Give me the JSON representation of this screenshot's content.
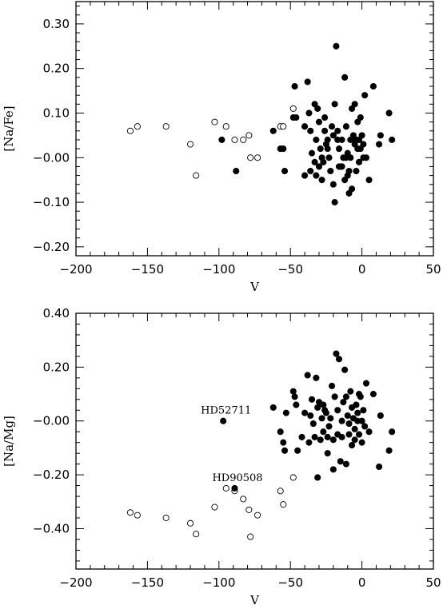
{
  "chart_data": [
    {
      "type": "scatter",
      "xlabel": "V",
      "ylabel": "[Na/Fe]",
      "xlim": [
        -200,
        50
      ],
      "ylim": [
        -0.22,
        0.35
      ],
      "xticks": [
        -200,
        -150,
        -100,
        -50,
        0,
        50
      ],
      "xtick_labels": [
        "−200",
        "−150",
        "−100",
        "−50",
        "0",
        "50"
      ],
      "yticks": [
        -0.2,
        -0.1,
        0.0,
        0.1,
        0.2,
        0.3
      ],
      "ytick_labels": [
        "−0.20",
        "−0.10",
        "−0.00",
        "0.10",
        "0.20",
        "0.30"
      ],
      "annotations": [],
      "series": [
        {
          "marker": "open-circle",
          "points": [
            [
              -162,
              0.06
            ],
            [
              -157,
              0.07
            ],
            [
              -137,
              0.07
            ],
            [
              -120,
              0.03
            ],
            [
              -116,
              -0.04
            ],
            [
              -103,
              0.08
            ],
            [
              -95,
              0.07
            ],
            [
              -89,
              0.04
            ],
            [
              -83,
              0.04
            ],
            [
              -79,
              0.05
            ],
            [
              -78,
              0.0
            ],
            [
              -73,
              0.0
            ],
            [
              -57,
              0.07
            ],
            [
              -55,
              0.07
            ],
            [
              -48,
              0.11
            ]
          ]
        },
        {
          "marker": "filled-circle",
          "points": [
            [
              -98,
              0.04
            ],
            [
              -88,
              -0.03
            ],
            [
              -62,
              0.06
            ],
            [
              -57,
              0.02
            ],
            [
              -55,
              0.02
            ],
            [
              -54,
              -0.03
            ],
            [
              -48,
              0.09
            ],
            [
              -47,
              0.16
            ],
            [
              -46,
              0.09
            ],
            [
              -40,
              0.07
            ],
            [
              -38,
              0.17
            ],
            [
              -37,
              0.1
            ],
            [
              -36,
              0.06
            ],
            [
              -35,
              0.01
            ],
            [
              -33,
              0.12
            ],
            [
              -32,
              0.04
            ],
            [
              -31,
              0.11
            ],
            [
              -30,
              0.08
            ],
            [
              -29,
              0.02
            ],
            [
              -28,
              0.0
            ],
            [
              -27,
              -0.01
            ],
            [
              -26,
              0.06
            ],
            [
              -25,
              0.03
            ],
            [
              -24,
              0.02
            ],
            [
              -23,
              0.0
            ],
            [
              -22,
              -0.03
            ],
            [
              -21,
              0.07
            ],
            [
              -20,
              0.05
            ],
            [
              -19,
              0.12
            ],
            [
              -18,
              0.25
            ],
            [
              -17,
              0.06
            ],
            [
              -16,
              0.02
            ],
            [
              -15,
              -0.02
            ],
            [
              -14,
              0.04
            ],
            [
              -13,
              0.0
            ],
            [
              -12,
              0.18
            ],
            [
              -11,
              0.07
            ],
            [
              -10,
              0.01
            ],
            [
              -9,
              -0.03
            ],
            [
              -8,
              0.04
            ],
            [
              -7,
              0.11
            ],
            [
              -6,
              0.05
            ],
            [
              -5,
              0.12
            ],
            [
              -4,
              0.04
            ],
            [
              -3,
              0.02
            ],
            [
              -2,
              -0.01
            ],
            [
              -1,
              0.09
            ],
            [
              0,
              0.05
            ],
            [
              1,
              0.03
            ],
            [
              2,
              0.14
            ],
            [
              3,
              0.0
            ],
            [
              -33,
              -0.01
            ],
            [
              -32,
              -0.04
            ],
            [
              -28,
              -0.05
            ],
            [
              -24,
              0.04
            ],
            [
              -20,
              -0.06
            ],
            [
              -19,
              -0.1
            ],
            [
              -17,
              0.04
            ],
            [
              -16,
              -0.02
            ],
            [
              -14,
              -0.02
            ],
            [
              -12,
              -0.05
            ],
            [
              -11,
              0.0
            ],
            [
              -10,
              -0.04
            ],
            [
              -9,
              -0.08
            ],
            [
              -8,
              0.0
            ],
            [
              -7,
              -0.07
            ],
            [
              -5,
              0.03
            ],
            [
              -4,
              -0.03
            ],
            [
              -3,
              0.08
            ],
            [
              -2,
              0.04
            ],
            [
              -1,
              0.02
            ],
            [
              1,
              0.0
            ],
            [
              5,
              -0.05
            ],
            [
              8,
              0.16
            ],
            [
              12,
              0.03
            ],
            [
              13,
              0.05
            ],
            [
              19,
              0.1
            ],
            [
              21,
              0.04
            ],
            [
              -40,
              -0.04
            ],
            [
              -30,
              -0.02
            ],
            [
              -36,
              -0.03
            ],
            [
              -26,
              0.09
            ]
          ]
        }
      ]
    },
    {
      "type": "scatter",
      "xlabel": "V",
      "ylabel": "[Na/Mg]",
      "xlim": [
        -200,
        50
      ],
      "ylim": [
        -0.55,
        0.4
      ],
      "xticks": [
        -200,
        -150,
        -100,
        -50,
        0,
        50
      ],
      "xtick_labels": [
        "−200",
        "−150",
        "−100",
        "−50",
        "0",
        "50"
      ],
      "yticks": [
        -0.4,
        -0.2,
        0.0,
        0.2,
        0.4
      ],
      "ytick_labels": [
        "−0.40",
        "−0.20",
        "−0.00",
        "0.20",
        "0.40"
      ],
      "annotations": [
        {
          "text": "HD52711",
          "x": -97,
          "y": 0.0
        },
        {
          "text": "HD90508",
          "x": -89,
          "y": -0.25
        }
      ],
      "series": [
        {
          "marker": "open-circle",
          "points": [
            [
              -162,
              -0.34
            ],
            [
              -157,
              -0.35
            ],
            [
              -137,
              -0.36
            ],
            [
              -120,
              -0.38
            ],
            [
              -116,
              -0.42
            ],
            [
              -103,
              -0.32
            ],
            [
              -95,
              -0.25
            ],
            [
              -89,
              -0.26
            ],
            [
              -83,
              -0.29
            ],
            [
              -79,
              -0.33
            ],
            [
              -78,
              -0.43
            ],
            [
              -73,
              -0.35
            ],
            [
              -57,
              -0.26
            ],
            [
              -55,
              -0.31
            ],
            [
              -48,
              -0.21
            ]
          ]
        },
        {
          "marker": "filled-circle",
          "points": [
            [
              -97,
              0.0
            ],
            [
              -89,
              -0.25
            ],
            [
              -62,
              0.05
            ],
            [
              -57,
              -0.04
            ],
            [
              -55,
              -0.08
            ],
            [
              -54,
              -0.11
            ],
            [
              -53,
              0.03
            ],
            [
              -48,
              0.11
            ],
            [
              -47,
              0.09
            ],
            [
              -46,
              0.06
            ],
            [
              -45,
              -0.11
            ],
            [
              -40,
              0.03
            ],
            [
              -38,
              0.17
            ],
            [
              -37,
              -0.08
            ],
            [
              -36,
              0.02
            ],
            [
              -35,
              0.08
            ],
            [
              -33,
              -0.06
            ],
            [
              -32,
              0.16
            ],
            [
              -31,
              0.05
            ],
            [
              -30,
              0.07
            ],
            [
              -29,
              -0.07
            ],
            [
              -28,
              0.01
            ],
            [
              -27,
              -0.04
            ],
            [
              -26,
              0.04
            ],
            [
              -25,
              0.03
            ],
            [
              -24,
              -0.06
            ],
            [
              -23,
              -0.02
            ],
            [
              -22,
              0.01
            ],
            [
              -21,
              0.13
            ],
            [
              -20,
              -0.07
            ],
            [
              -19,
              0.09
            ],
            [
              -18,
              0.25
            ],
            [
              -17,
              -0.05
            ],
            [
              -16,
              0.23
            ],
            [
              -15,
              -0.15
            ],
            [
              -14,
              0.0
            ],
            [
              -13,
              0.07
            ],
            [
              -12,
              0.19
            ],
            [
              -11,
              -0.16
            ],
            [
              -10,
              0.02
            ],
            [
              -9,
              -0.05
            ],
            [
              -8,
              0.11
            ],
            [
              -7,
              -0.09
            ],
            [
              -6,
              0.01
            ],
            [
              -5,
              -0.03
            ],
            [
              -4,
              0.06
            ],
            [
              -3,
              0.0
            ],
            [
              -2,
              -0.05
            ],
            [
              -1,
              0.09
            ],
            [
              0,
              -0.08
            ],
            [
              1,
              0.04
            ],
            [
              2,
              -0.02
            ],
            [
              3,
              0.14
            ],
            [
              5,
              -0.04
            ],
            [
              8,
              0.1
            ],
            [
              12,
              -0.17
            ],
            [
              13,
              0.02
            ],
            [
              19,
              -0.11
            ],
            [
              21,
              -0.04
            ],
            [
              -42,
              -0.06
            ],
            [
              -34,
              -0.01
            ],
            [
              -31,
              -0.21
            ],
            [
              -27,
              0.06
            ],
            [
              -24,
              -0.12
            ],
            [
              -20,
              -0.18
            ],
            [
              -17,
              0.04
            ],
            [
              -14,
              -0.06
            ],
            [
              -11,
              0.09
            ],
            [
              -9,
              -0.01
            ],
            [
              -7,
              0.05
            ],
            [
              -5,
              -0.07
            ],
            [
              -3,
              0.03
            ],
            [
              -2,
              0.1
            ],
            [
              0,
              0.0
            ]
          ]
        }
      ]
    }
  ]
}
